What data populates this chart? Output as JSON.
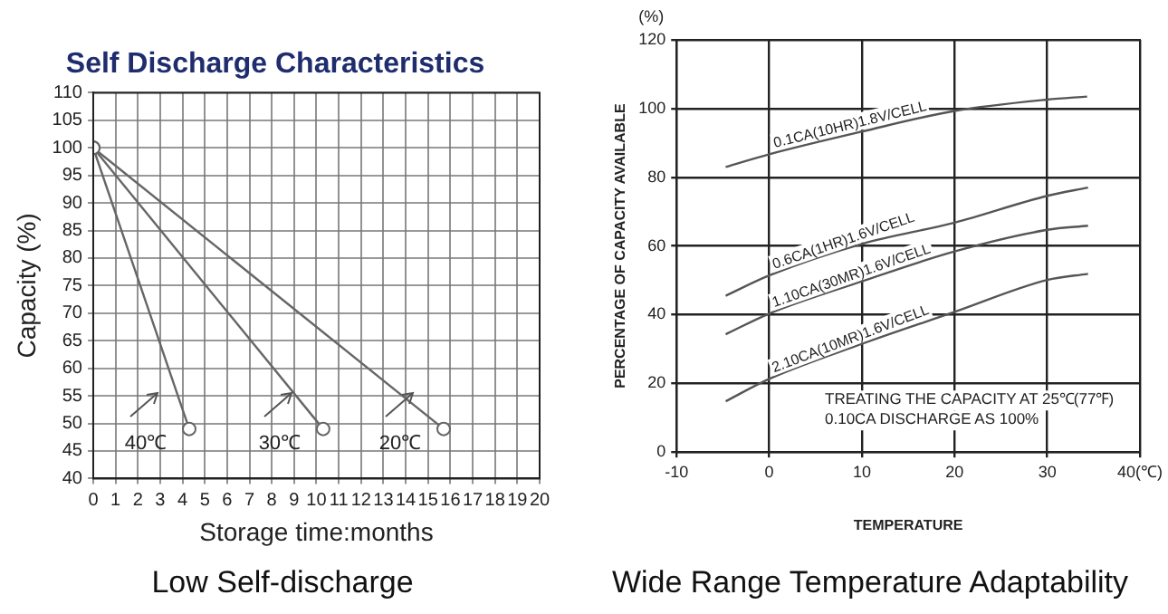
{
  "chart_data": [
    {
      "type": "line",
      "title": "Self Discharge Characteristics",
      "xlabel": "Storage time:months",
      "ylabel": "Capacity (%)",
      "marker": "circle",
      "grid": true,
      "legend": false,
      "xlim": [
        0,
        20
      ],
      "xticks": [
        0,
        1,
        2,
        3,
        4,
        5,
        6,
        7,
        8,
        9,
        10,
        11,
        12,
        13,
        14,
        15,
        16,
        17,
        18,
        19,
        20
      ],
      "ylim": [
        40,
        110
      ],
      "yticks": [
        40,
        45,
        50,
        55,
        60,
        65,
        70,
        75,
        80,
        85,
        90,
        95,
        100,
        105,
        110
      ],
      "series": [
        {
          "name": "40℃",
          "color": "#666666",
          "x": [
            0,
            4.3
          ],
          "values": [
            100,
            49
          ]
        },
        {
          "name": "30℃",
          "color": "#666666",
          "x": [
            0,
            10.3
          ],
          "values": [
            100,
            49
          ]
        },
        {
          "name": "20℃",
          "color": "#666666",
          "x": [
            0,
            15.7
          ],
          "values": [
            100,
            49
          ]
        }
      ],
      "annotations": [
        "Low Self-discharge"
      ]
    },
    {
      "type": "line",
      "xlabel": "TEMPERATURE",
      "ylabel": "PERCENTAGE OF CAPACITY AVAILABLE",
      "grid": true,
      "legend": false,
      "xlim": [
        -10,
        40
      ],
      "xticks": [
        -10,
        0,
        10,
        20,
        30,
        {
          "value": 40,
          "label": "40(℃)"
        }
      ],
      "ylim": [
        0,
        120
      ],
      "yticks": [
        0,
        20,
        40,
        60,
        80,
        100,
        120
      ],
      "series": [
        {
          "name": "0.1CA(10HR)1.8V/CELL",
          "color": "#555555",
          "x": [
            -4.7,
            0,
            10,
            20,
            30,
            34.3
          ],
          "values": [
            83,
            86.7,
            93.3,
            99.3,
            102.6,
            103.5
          ]
        },
        {
          "name": "0.6CA(1HR)1.6V/CELL",
          "color": "#555555",
          "x": [
            -4.7,
            0,
            10,
            20,
            30,
            34.4
          ],
          "values": [
            45.5,
            51.4,
            60.6,
            66.8,
            74.6,
            77
          ]
        },
        {
          "name": "1.10CA(30MR)1.6V/CELL",
          "color": "#555555",
          "x": [
            -4.7,
            0,
            10,
            20,
            30,
            34.4
          ],
          "values": [
            34.3,
            40.3,
            49.7,
            58.4,
            64.7,
            65.9
          ]
        },
        {
          "name": "2.10CA(10MR)1.6V/CELL",
          "color": "#555555",
          "x": [
            -4.7,
            0,
            10,
            20,
            30,
            34.4
          ],
          "values": [
            14.8,
            21.3,
            31.5,
            40.8,
            50.1,
            51.9
          ]
        }
      ],
      "annotations": [
        "(%)",
        "TREATING THE CAPACITY AT 25℃(77℉)",
        "0.10CA DISCHARGE AS 100%",
        "Wide Range Temperature Adaptability"
      ]
    }
  ]
}
